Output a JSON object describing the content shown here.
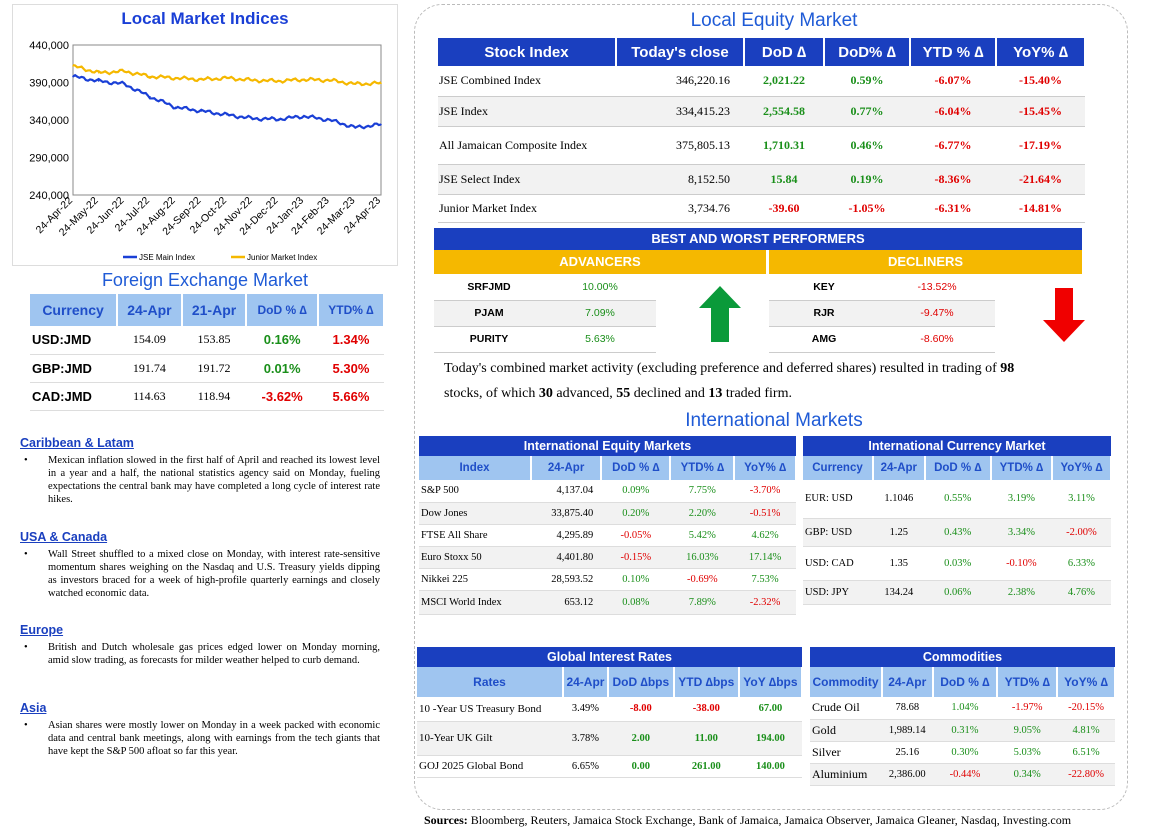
{
  "left": {
    "chart": {
      "title": "Local Market Indices",
      "legend": [
        "JSE Main Index",
        "Junior Market Index"
      ]
    },
    "fx": {
      "title": "Foreign Exchange Market",
      "headers": [
        "Currency",
        "24-Apr",
        "21-Apr",
        "DoD % ∆",
        "YTD% ∆"
      ],
      "rows": [
        {
          "cur": "USD:JMD",
          "a": "154.09",
          "b": "153.85",
          "dod": "0.16%",
          "ytd": "1.34%"
        },
        {
          "cur": "GBP:JMD",
          "a": "191.74",
          "b": "191.72",
          "dod": "0.01%",
          "ytd": "5.30%"
        },
        {
          "cur": "CAD:JMD",
          "a": "114.63",
          "b": "118.94",
          "dod": "-3.62%",
          "ytd": "5.66%"
        }
      ]
    },
    "news": [
      {
        "heading": "Caribbean & Latam",
        "text": "Mexican inflation slowed in the first half of April and reached its lowest level in a year and a half, the national statistics agency said on Monday, fueling expectations the central bank may have completed a long cycle of interest rate hikes."
      },
      {
        "heading": "USA & Canada",
        "text": "Wall Street shuffled to a mixed close on Monday, with interest rate-sensitive momentum shares weighing on the Nasdaq and U.S. Treasury yields dipping as investors braced for a week of high-profile quarterly earnings and closely watched economic data."
      },
      {
        "heading": "Europe",
        "text": "British and Dutch wholesale gas prices edged lower on Monday morning, amid slow trading, as forecasts for milder weather helped to curb demand."
      },
      {
        "heading": "Asia",
        "text": "Asian shares were mostly lower on Monday in a week packed with economic data and central bank meetings, along with earnings from the tech giants that have kept the S&P 500 afloat so far this year."
      }
    ]
  },
  "chart_data": {
    "type": "line",
    "title": "Local Market Indices",
    "x": [
      "24-Apr-22",
      "24-May-22",
      "24-Jun-22",
      "24-Jul-22",
      "24-Aug-22",
      "24-Sep-22",
      "24-Oct-22",
      "24-Nov-22",
      "24-Dec-22",
      "24-Jan-23",
      "24-Feb-23",
      "24-Mar-23",
      "24-Apr-23"
    ],
    "series": [
      {
        "name": "JSE Main Index",
        "color": "#1a3fd6",
        "values": [
          398000,
          392000,
          388000,
          371000,
          357000,
          352000,
          347000,
          342000,
          341000,
          345000,
          340000,
          330000,
          334000
        ]
      },
      {
        "name": "Junior Market Index",
        "color": "#f5b800",
        "values": [
          412000,
          403000,
          405000,
          398000,
          396000,
          394000,
          396000,
          393000,
          392000,
          394000,
          393000,
          388000,
          389000
        ]
      }
    ],
    "ylim": [
      240000,
      440000
    ],
    "yticks": [
      "440,000",
      "390,000",
      "340,000",
      "290,000",
      "240,000"
    ],
    "legend": "bottom"
  },
  "leq": {
    "title": "Local Equity Market",
    "headers": [
      "Stock Index",
      "Today's close",
      "DoD  ∆",
      "DoD% ∆",
      "YTD % ∆",
      "YoY% ∆"
    ],
    "rows": [
      {
        "name": "JSE Combined Index",
        "close": "346,220.16",
        "dod": "2,021.22",
        "dodp": "0.59%",
        "ytd": "-6.07%",
        "yoy": "-15.40%"
      },
      {
        "name": "JSE Index",
        "close": "334,415.23",
        "dod": "2,554.58",
        "dodp": "0.77%",
        "ytd": "-6.04%",
        "yoy": "-15.45%"
      },
      {
        "name": "All Jamaican Composite Index",
        "close": "375,805.13",
        "dod": "1,710.31",
        "dodp": "0.46%",
        "ytd": "-6.77%",
        "yoy": "-17.19%"
      },
      {
        "name": "JSE Select Index",
        "close": "8,152.50",
        "dod": "15.84",
        "dodp": "0.19%",
        "ytd": "-8.36%",
        "yoy": "-21.64%"
      },
      {
        "name": "Junior Market Index",
        "close": "3,734.76",
        "dod": "-39.60",
        "dodp": "-1.05%",
        "ytd": "-6.31%",
        "yoy": "-14.81%"
      }
    ],
    "bw_title": "BEST AND WORST PERFORMERS",
    "adv_label": "ADVANCERS",
    "dec_label": "DECLINERS",
    "advancers": [
      {
        "t": "SRFJMD",
        "v": "10.00%"
      },
      {
        "t": "PJAM",
        "v": "7.09%"
      },
      {
        "t": "PURITY",
        "v": "5.63%"
      }
    ],
    "decliners": [
      {
        "t": "KEY",
        "v": "-13.52%"
      },
      {
        "t": "RJR",
        "v": "-9.47%"
      },
      {
        "t": "AMG",
        "v": "-8.60%"
      }
    ],
    "summary": {
      "p1": "Today's combined market activity (excluding preference and deferred shares) resulted in trading of ",
      "n1": "98",
      "p2": "stocks, of which ",
      "n2": "30",
      "p3": " advanced, ",
      "n3": "55",
      "p4": " declined and ",
      "n4": "13",
      "p5": " traded firm."
    }
  },
  "intl": {
    "title": "International Markets",
    "equity": {
      "title": "International Equity Markets",
      "headers": [
        "Index",
        "24-Apr",
        "DoD % ∆",
        "YTD% ∆",
        "YoY% ∆"
      ],
      "rows": [
        {
          "n": "S&P 500",
          "v": "4,137.04",
          "d": "0.09%",
          "y": "7.75%",
          "yy": "-3.70%"
        },
        {
          "n": "Dow Jones",
          "v": "33,875.40",
          "d": "0.20%",
          "y": "2.20%",
          "yy": "-0.51%"
        },
        {
          "n": "FTSE All Share",
          "v": "4,295.89",
          "d": "-0.05%",
          "y": "5.42%",
          "yy": "4.62%"
        },
        {
          "n": "Euro Stoxx 50",
          "v": "4,401.80",
          "d": "-0.15%",
          "y": "16.03%",
          "yy": "17.14%"
        },
        {
          "n": "Nikkei 225",
          "v": "28,593.52",
          "d": "0.10%",
          "y": "-0.69%",
          "yy": "7.53%"
        },
        {
          "n": "MSCI World Index",
          "v": "653.12",
          "d": "0.08%",
          "y": "7.89%",
          "yy": "-2.32%"
        }
      ]
    },
    "currency": {
      "title": "International Currency Market",
      "headers": [
        "Currency",
        "24-Apr",
        "DoD % ∆",
        "YTD% ∆",
        "YoY% ∆"
      ],
      "rows": [
        {
          "n": "EUR: USD",
          "v": "1.1046",
          "d": "0.55%",
          "y": "3.19%",
          "yy": "3.11%"
        },
        {
          "n": "GBP: USD",
          "v": "1.25",
          "d": "0.43%",
          "y": "3.34%",
          "yy": "-2.00%"
        },
        {
          "n": "USD: CAD",
          "v": "1.35",
          "d": "0.03%",
          "y": "-0.10%",
          "yy": "6.33%"
        },
        {
          "n": "USD: JPY",
          "v": "134.24",
          "d": "0.06%",
          "y": "2.38%",
          "yy": "4.76%"
        }
      ]
    },
    "rates": {
      "title": "Global Interest Rates",
      "headers": [
        "Rates",
        "24-Apr",
        "DoD ∆bps",
        "YTD ∆bps",
        "YoY ∆bps"
      ],
      "rows": [
        {
          "n": "10 -Year US Treasury Bond",
          "v": "3.49%",
          "d": "-8.00",
          "y": "-38.00",
          "yy": "67.00"
        },
        {
          "n": "10-Year UK Gilt",
          "v": "3.78%",
          "d": "2.00",
          "y": "11.00",
          "yy": "194.00"
        },
        {
          "n": "GOJ 2025 Global Bond",
          "v": "6.65%",
          "d": "0.00",
          "y": "261.00",
          "yy": "140.00"
        }
      ]
    },
    "commodities": {
      "title": "Commodities",
      "headers": [
        "Commodity",
        "24-Apr",
        "DoD % ∆",
        "YTD% ∆",
        "YoY% ∆"
      ],
      "rows": [
        {
          "n": "Crude Oil",
          "v": "78.68",
          "d": "1.04%",
          "y": "-1.97%",
          "yy": "-20.15%"
        },
        {
          "n": "Gold",
          "v": "1,989.14",
          "d": "0.31%",
          "y": "9.05%",
          "yy": "4.81%"
        },
        {
          "n": "Silver",
          "v": "25.16",
          "d": "0.30%",
          "y": "5.03%",
          "yy": "6.51%"
        },
        {
          "n": "Aluminium",
          "v": "2,386.00",
          "d": "-0.44%",
          "y": "0.34%",
          "yy": "-22.80%"
        }
      ]
    }
  },
  "sources": {
    "label": "Sources:",
    "text": " Bloomberg, Reuters, Jamaica Stock Exchange, Bank of Jamaica, Jamaica Observer, Jamaica Gleaner, Nasdaq, Investing.com"
  }
}
